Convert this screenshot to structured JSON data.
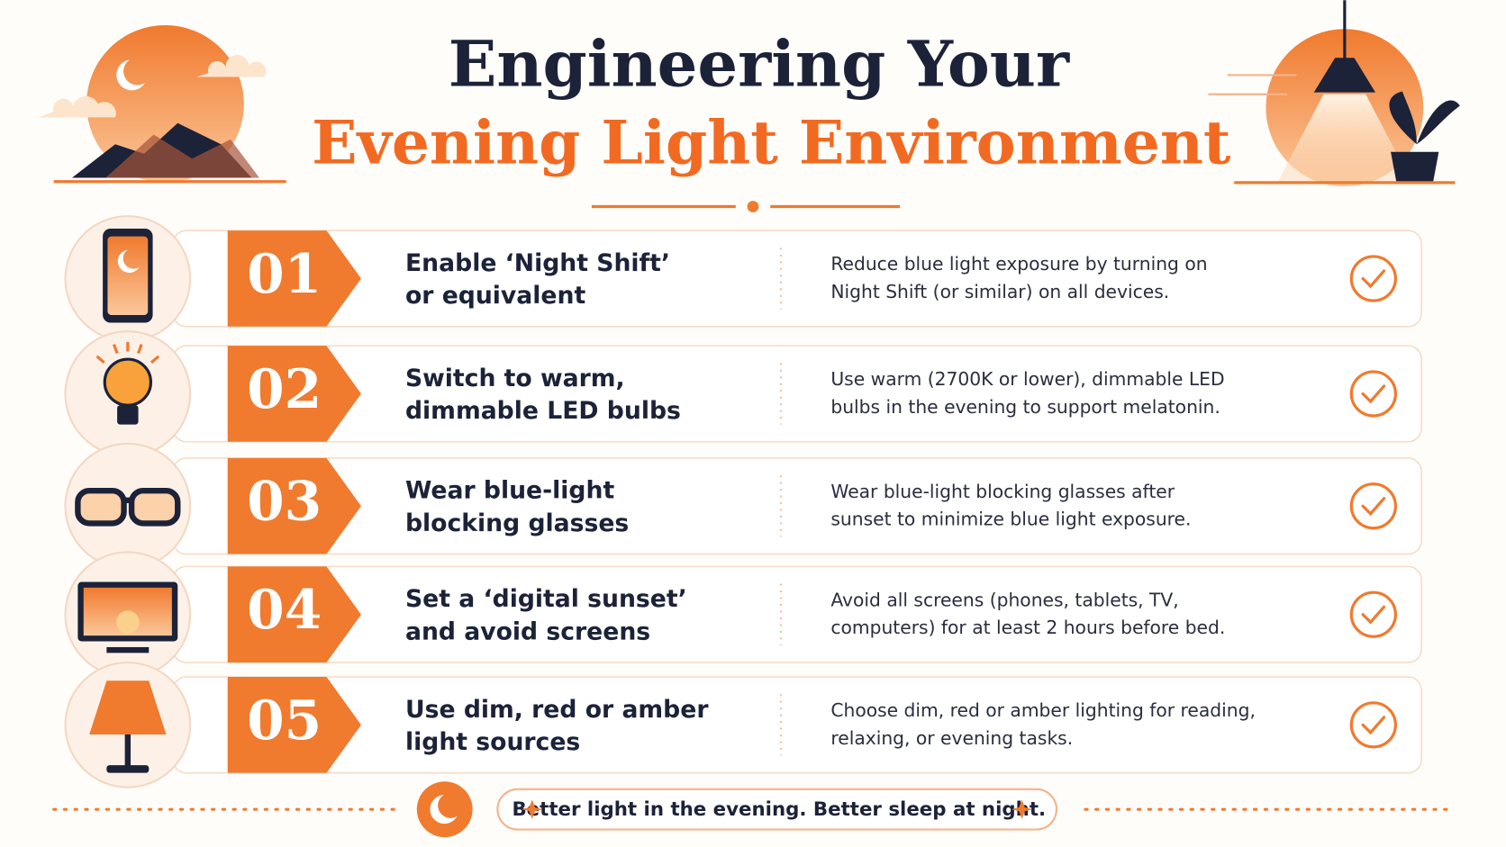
{
  "header": {
    "title_line1": "Engineering Your",
    "title_line2": "Evening Light Environment"
  },
  "items": [
    {
      "number": "01",
      "title": [
        "Enable ‘Night Shift’",
        "or equivalent"
      ],
      "description": [
        "Reduce blue light exposure by turning on",
        "Night Shift (or similar) on all devices."
      ]
    },
    {
      "number": "02",
      "title": [
        "Switch to warm,",
        "dimmable LED bulbs"
      ],
      "description": [
        "Use warm (2700K or lower), dimmable LED",
        "bulbs in the evening to support melatonin."
      ]
    },
    {
      "number": "03",
      "title": [
        "Wear blue-light",
        "blocking glasses"
      ],
      "description": [
        "Wear blue-light blocking glasses after",
        "sunset to minimize blue light exposure."
      ]
    },
    {
      "number": "04",
      "title": [
        "Set a ‘digital sunset’",
        "and avoid screens"
      ],
      "description": [
        "Avoid all screens (phones, tablets, TV,",
        "computers) for at least 2 hours before bed."
      ]
    },
    {
      "number": "05",
      "title": [
        "Use dim, red or amber",
        "light sources"
      ],
      "description": [
        "Choose dim, red or amber lighting for reading,",
        "relaxing, or evening tasks."
      ]
    }
  ],
  "footer": {
    "text": "Better light in the evening. Better sleep at night."
  }
}
